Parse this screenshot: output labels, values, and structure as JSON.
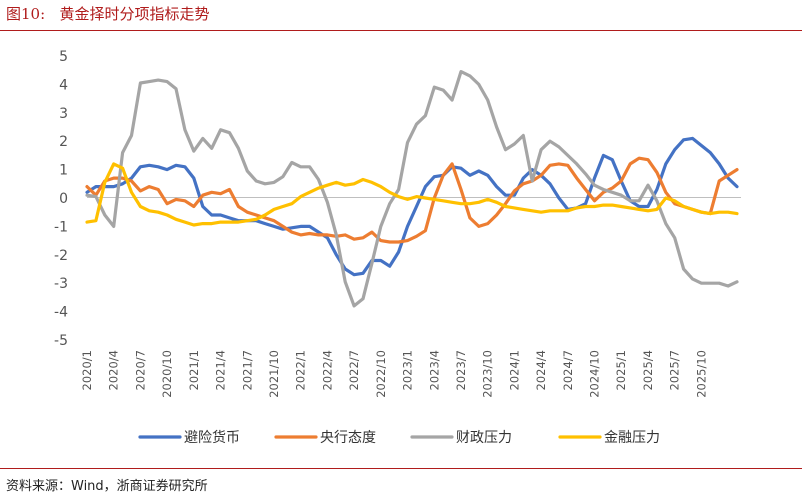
{
  "figure": {
    "label": "图10:",
    "title": "黄金择时分项指标走势",
    "source": "资料来源：Wind，浙商证券研究所"
  },
  "chart_data": {
    "type": "line",
    "title": "黄金择时分项指标走势",
    "xlabel": "",
    "ylabel": "",
    "ylim": [
      -5,
      5
    ],
    "yticks": [
      5,
      4,
      3,
      2,
      1,
      0,
      -1,
      -2,
      -3,
      -4,
      -5
    ],
    "xtick_labels": [
      "2020/1",
      "2020/4",
      "2020/7",
      "2020/10",
      "2021/1",
      "2021/4",
      "2021/7",
      "2021/10",
      "2022/1",
      "2022/4",
      "2022/7",
      "2022/10",
      "2023/1",
      "2023/4",
      "2023/7",
      "2023/10",
      "2024/1",
      "2024/4",
      "2024/7",
      "2024/10",
      "2025/1",
      "2025/4",
      "2025/7",
      "2025/10"
    ],
    "legend_position": "bottom",
    "series": [
      {
        "name": "避险货币",
        "color": "#4472C4",
        "values": [
          0.2,
          0.4,
          0.4,
          0.4,
          0.5,
          0.7,
          1.1,
          1.15,
          1.1,
          1.0,
          1.15,
          1.1,
          0.7,
          -0.3,
          -0.6,
          -0.6,
          -0.7,
          -0.8,
          -0.8,
          -0.8,
          -0.9,
          -1.0,
          -1.1,
          -1.05,
          -1.0,
          -1.0,
          -1.2,
          -1.4,
          -2.0,
          -2.5,
          -2.7,
          -2.65,
          -2.2,
          -2.2,
          -2.4,
          -1.9,
          -1.0,
          -0.3,
          0.4,
          0.75,
          0.8,
          1.1,
          1.05,
          0.8,
          0.95,
          0.8,
          0.4,
          0.1,
          0.1,
          0.7,
          1.0,
          0.8,
          0.5,
          0.0,
          -0.4,
          -0.35,
          -0.2,
          0.7,
          1.5,
          1.35,
          0.6,
          -0.1,
          -0.3,
          -0.3,
          0.3,
          1.2,
          1.7,
          2.05,
          2.1,
          1.85,
          1.6,
          1.2,
          0.7,
          0.4
        ]
      },
      {
        "name": "央行态度",
        "color": "#ED7D31",
        "values": [
          0.4,
          0.1,
          0.6,
          0.7,
          0.7,
          0.6,
          0.25,
          0.4,
          0.3,
          -0.2,
          -0.05,
          -0.1,
          -0.3,
          0.1,
          0.2,
          0.15,
          0.3,
          -0.3,
          -0.5,
          -0.6,
          -0.7,
          -0.8,
          -1.0,
          -1.2,
          -1.3,
          -1.25,
          -1.3,
          -1.3,
          -1.35,
          -1.3,
          -1.45,
          -1.4,
          -1.2,
          -1.5,
          -1.55,
          -1.55,
          -1.5,
          -1.35,
          -1.15,
          0.0,
          0.8,
          1.2,
          0.3,
          -0.7,
          -1.0,
          -0.9,
          -0.6,
          -0.2,
          0.25,
          0.5,
          0.6,
          0.8,
          1.15,
          1.2,
          1.15,
          0.7,
          0.3,
          -0.1,
          0.2,
          0.35,
          0.6,
          1.2,
          1.4,
          1.35,
          0.9,
          0.2,
          -0.2,
          -0.3,
          -0.4,
          -0.5,
          -0.55,
          0.6,
          0.8,
          1.0
        ]
      },
      {
        "name": "财政压力",
        "color": "#A5A5A5",
        "values": [
          0.1,
          0.05,
          -0.6,
          -1.0,
          1.6,
          2.2,
          4.05,
          4.1,
          4.15,
          4.1,
          3.85,
          2.4,
          1.65,
          2.1,
          1.75,
          2.4,
          2.3,
          1.75,
          0.95,
          0.6,
          0.5,
          0.55,
          0.75,
          1.25,
          1.1,
          1.1,
          0.65,
          -0.15,
          -1.3,
          -2.95,
          -3.8,
          -3.55,
          -2.3,
          -1.0,
          -0.2,
          0.3,
          1.95,
          2.6,
          2.9,
          3.9,
          3.8,
          3.45,
          4.45,
          4.3,
          4.0,
          3.45,
          2.5,
          1.7,
          1.9,
          2.2,
          0.6,
          1.7,
          2.0,
          1.8,
          1.5,
          1.2,
          0.85,
          0.45,
          0.3,
          0.2,
          0.1,
          -0.1,
          -0.1,
          0.45,
          -0.1,
          -0.9,
          -1.4,
          -2.5,
          -2.85,
          -3.0,
          -3.0,
          -3.0,
          -3.1,
          -2.95
        ]
      },
      {
        "name": "金融压力",
        "color": "#FFC000",
        "values": [
          -0.85,
          -0.8,
          0.55,
          1.2,
          1.05,
          0.2,
          -0.3,
          -0.45,
          -0.5,
          -0.6,
          -0.75,
          -0.85,
          -0.95,
          -0.9,
          -0.9,
          -0.85,
          -0.85,
          -0.85,
          -0.8,
          -0.75,
          -0.6,
          -0.4,
          -0.3,
          -0.2,
          0.05,
          0.2,
          0.35,
          0.45,
          0.55,
          0.45,
          0.5,
          0.65,
          0.55,
          0.4,
          0.2,
          0.05,
          -0.05,
          0.05,
          0.0,
          -0.05,
          -0.1,
          -0.15,
          -0.2,
          -0.2,
          -0.15,
          -0.05,
          -0.15,
          -0.3,
          -0.35,
          -0.4,
          -0.45,
          -0.5,
          -0.45,
          -0.45,
          -0.45,
          -0.35,
          -0.3,
          -0.3,
          -0.25,
          -0.25,
          -0.3,
          -0.35,
          -0.4,
          -0.45,
          -0.4,
          0.0,
          -0.1,
          -0.3,
          -0.4,
          -0.5,
          -0.55,
          -0.5,
          -0.5,
          -0.55
        ]
      }
    ]
  }
}
